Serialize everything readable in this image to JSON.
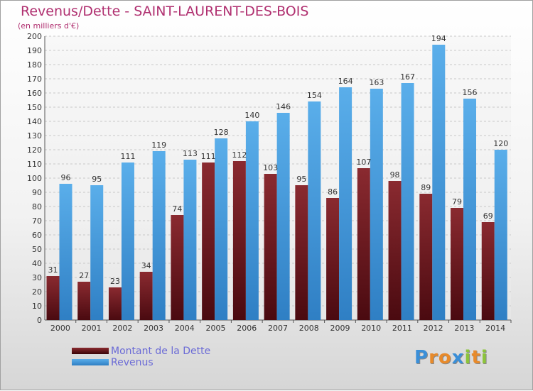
{
  "title": "Revenus/Dette - SAINT-LAURENT-DES-BOIS",
  "subtitle": "(en milliers d'€)",
  "logo": [
    "P",
    "r",
    "o",
    "x",
    "i",
    "t",
    "i"
  ],
  "colors": {
    "title": "#b03070",
    "debt": "#7a1f24",
    "revenue": "#4ea3e3",
    "legend_text": "#6b6bd6"
  },
  "chart_data": {
    "type": "bar",
    "title": "Revenus/Dette - SAINT-LAURENT-DES-BOIS",
    "subtitle": "(en milliers d'€)",
    "categories": [
      "2000",
      "2001",
      "2002",
      "2003",
      "2004",
      "2005",
      "2006",
      "2007",
      "2008",
      "2009",
      "2010",
      "2011",
      "2012",
      "2013",
      "2014"
    ],
    "series": [
      {
        "name": "Montant de la Dette",
        "values": [
          31,
          27,
          23,
          34,
          74,
          111,
          112,
          103,
          95,
          86,
          107,
          98,
          89,
          79,
          69
        ]
      },
      {
        "name": "Revenus",
        "values": [
          96,
          95,
          111,
          119,
          113,
          128,
          140,
          146,
          154,
          164,
          163,
          167,
          194,
          156,
          120
        ]
      }
    ],
    "ylim": [
      0,
      200
    ],
    "yticks": [
      0,
      10,
      20,
      30,
      40,
      50,
      60,
      70,
      80,
      90,
      100,
      110,
      120,
      130,
      140,
      150,
      160,
      170,
      180,
      190,
      200
    ],
    "grid": true,
    "legend": "bottom-left"
  }
}
